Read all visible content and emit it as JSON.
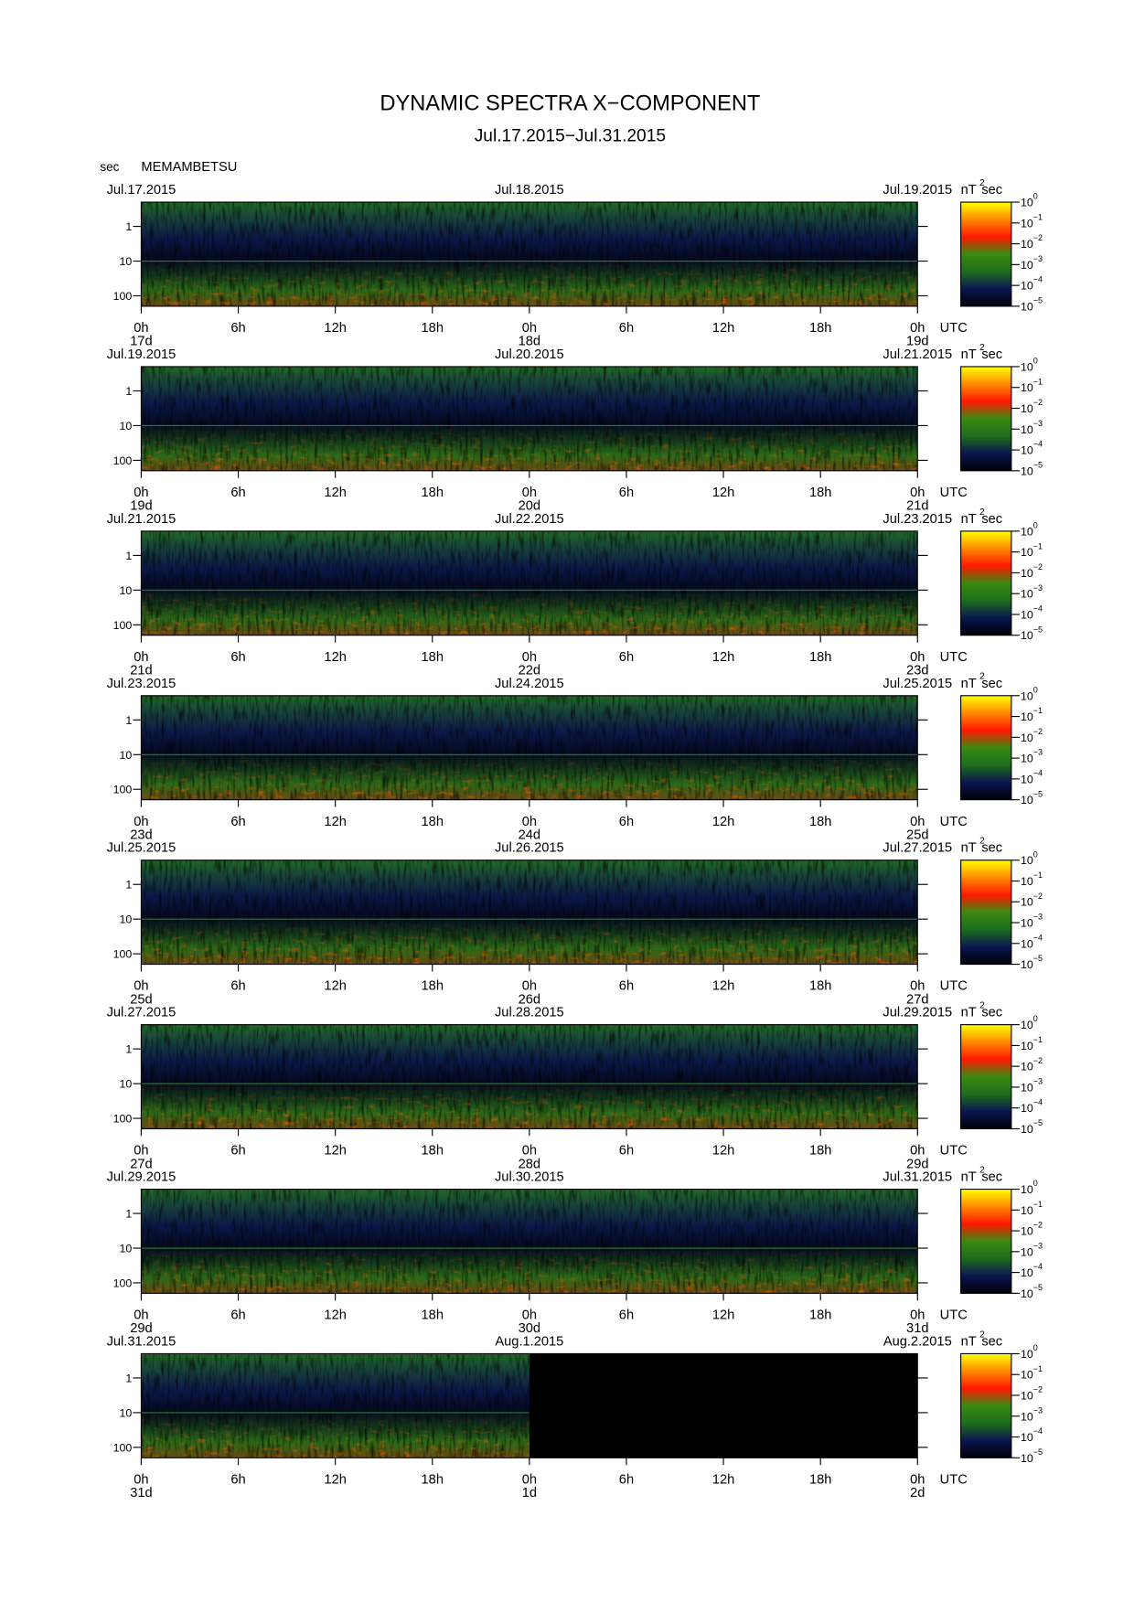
{
  "chart_data": {
    "type": "spectrogram",
    "title": "DYNAMIC SPECTRA X−COMPONENT",
    "subtitle": "Jul.17.2015−Jul.31.2015",
    "station": "MEMAMBETSU",
    "y_label": "sec",
    "time_zone": "UTC",
    "log_y": true,
    "ylim": [
      0.2,
      200
    ],
    "yticks": [
      1,
      10,
      100
    ],
    "xlim": [
      0,
      48
    ],
    "xticks": [
      {
        "value": 0,
        "label": "0h"
      },
      {
        "value": 6,
        "label": "6h"
      },
      {
        "value": 12,
        "label": "12h"
      },
      {
        "value": 18,
        "label": "18h"
      },
      {
        "value": 24,
        "label": "0h"
      },
      {
        "value": 30,
        "label": "6h"
      },
      {
        "value": 36,
        "label": "12h"
      },
      {
        "value": 42,
        "label": "18h"
      },
      {
        "value": 48,
        "label": "0h"
      }
    ],
    "colorbar": {
      "unit": "nT",
      "unit_exponent": "2",
      "unit_suffix": "sec",
      "log": true,
      "lim": [
        1e-05,
        1
      ],
      "ticks": [
        {
          "value": 1,
          "label": "10",
          "exponent": "0"
        },
        {
          "value": 0.1,
          "label": "10",
          "exponent": "−1"
        },
        {
          "value": 0.01,
          "label": "10",
          "exponent": "−2"
        },
        {
          "value": 0.001,
          "label": "10",
          "exponent": "−3"
        },
        {
          "value": 0.0001,
          "label": "10",
          "exponent": "−4"
        },
        {
          "value": 1e-05,
          "label": "10",
          "exponent": "−5"
        }
      ],
      "colors": [
        "#000008",
        "#0a1650",
        "#1d6e1d",
        "#3a8a10",
        "#ff1800",
        "#ff8a00",
        "#ffff00"
      ]
    },
    "panels": [
      {
        "dates": [
          "Jul.17.2015",
          "Jul.18.2015",
          "Jul.19.2015"
        ],
        "days": [
          "17d",
          "18d",
          "19d"
        ]
      },
      {
        "dates": [
          "Jul.19.2015",
          "Jul.20.2015",
          "Jul.21.2015"
        ],
        "days": [
          "19d",
          "20d",
          "21d"
        ]
      },
      {
        "dates": [
          "Jul.21.2015",
          "Jul.22.2015",
          "Jul.23.2015"
        ],
        "days": [
          "21d",
          "22d",
          "23d"
        ]
      },
      {
        "dates": [
          "Jul.23.2015",
          "Jul.24.2015",
          "Jul.25.2015"
        ],
        "days": [
          "23d",
          "24d",
          "25d"
        ]
      },
      {
        "dates": [
          "Jul.25.2015",
          "Jul.26.2015",
          "Jul.27.2015"
        ],
        "days": [
          "25d",
          "26d",
          "27d"
        ]
      },
      {
        "dates": [
          "Jul.27.2015",
          "Jul.28.2015",
          "Jul.29.2015"
        ],
        "days": [
          "27d",
          "28d",
          "29d"
        ]
      },
      {
        "dates": [
          "Jul.29.2015",
          "Jul.30.2015",
          "Jul.31.2015"
        ],
        "days": [
          "29d",
          "30d",
          "31d"
        ]
      },
      {
        "dates": [
          "Jul.31.2015",
          "Aug.1.2015",
          "Aug.2.2015"
        ],
        "days": [
          "31d",
          "1d",
          "2d"
        ],
        "data_xlim": [
          0,
          24
        ]
      }
    ]
  }
}
